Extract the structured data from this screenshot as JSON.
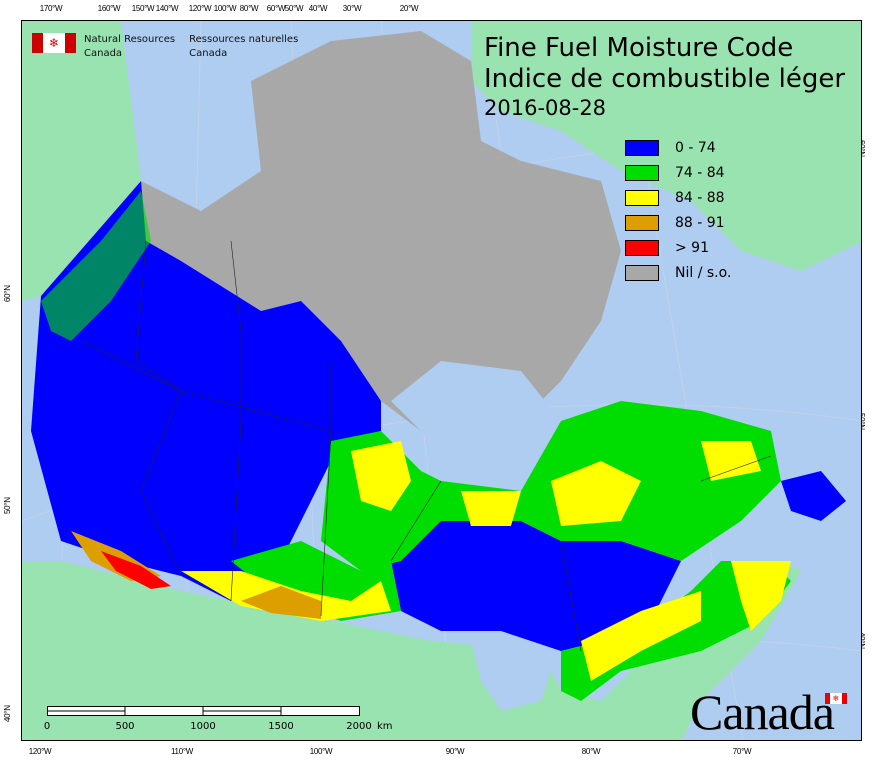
{
  "title": {
    "en": "Fine Fuel Moisture Code",
    "fr": "Indice de combustible léger",
    "date": "2016-08-28"
  },
  "agency": {
    "en_line1": "Natural Resources",
    "en_line2": "Canada",
    "fr_line1": "Ressources naturelles",
    "fr_line2": "Canada"
  },
  "wordmark": "Canada",
  "legend": [
    {
      "label": "0 - 74",
      "color": "#0000ff"
    },
    {
      "label": "74 - 84",
      "color": "#00dd00"
    },
    {
      "label": "84 - 88",
      "color": "#ffff00"
    },
    {
      "label": "88 - 91",
      "color": "#dd9f00"
    },
    {
      "label": "> 91",
      "color": "#ff0000"
    },
    {
      "label": "Nil / s.o.",
      "color": "#a8a8a8"
    }
  ],
  "colors": {
    "water": "#aecdf0",
    "foreign_land": "#99e3b0",
    "no_data": "#a8a8a8"
  },
  "axes": {
    "top": [
      "170°W",
      "160°W",
      "150°W",
      "140°W",
      "120°W",
      "100°W",
      "80°W",
      "60°W",
      "50°W",
      "40°W",
      "30°W",
      "20°W"
    ],
    "bottom": [
      "120°W",
      "110°W",
      "100°W",
      "90°W",
      "80°W",
      "70°W"
    ],
    "left": [
      "60°N",
      "50°N",
      "40°N"
    ],
    "right": [
      "60°N",
      "50°N",
      "40°N"
    ]
  },
  "scalebar": {
    "labels": [
      "0",
      "500",
      "1000",
      "1500",
      "2000"
    ],
    "unit": "km"
  }
}
